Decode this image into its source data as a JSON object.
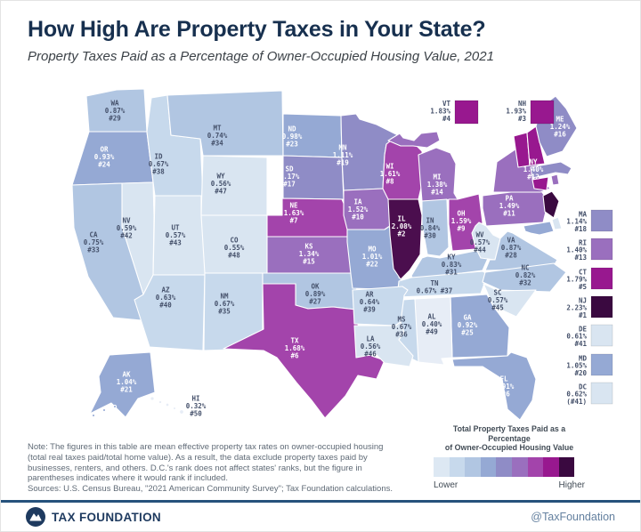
{
  "header": {
    "title": "How High Are Property Taxes in Your State?",
    "subtitle": "Property Taxes Paid as a Percentage of Owner-Occupied Housing Value, 2021"
  },
  "map": {
    "states": [
      {
        "code": "WA",
        "value": "0.87%",
        "rank": "#29",
        "fill": "#b1c6e2",
        "text": "#44506a"
      },
      {
        "code": "OR",
        "value": "0.93%",
        "rank": "#24",
        "fill": "#95a9d4",
        "text": "#ffffff"
      },
      {
        "code": "CA",
        "value": "0.75%",
        "rank": "#33",
        "fill": "#b1c6e2",
        "text": "#44506a"
      },
      {
        "code": "NV",
        "value": "0.59%",
        "rank": "#42",
        "fill": "#d9e5f1",
        "text": "#44506a"
      },
      {
        "code": "ID",
        "value": "0.67%",
        "rank": "#38",
        "fill": "#c7d9ec",
        "text": "#44506a"
      },
      {
        "code": "UT",
        "value": "0.57%",
        "rank": "#43",
        "fill": "#d9e5f1",
        "text": "#44506a"
      },
      {
        "code": "AZ",
        "value": "0.63%",
        "rank": "#40",
        "fill": "#c7d9ec",
        "text": "#44506a"
      },
      {
        "code": "MT",
        "value": "0.74%",
        "rank": "#34",
        "fill": "#b1c6e2",
        "text": "#44506a"
      },
      {
        "code": "WY",
        "value": "0.56%",
        "rank": "#47",
        "fill": "#d9e5f1",
        "text": "#44506a"
      },
      {
        "code": "CO",
        "value": "0.55%",
        "rank": "#48",
        "fill": "#d9e5f1",
        "text": "#44506a"
      },
      {
        "code": "NM",
        "value": "0.67%",
        "rank": "#35",
        "fill": "#c7d9ec",
        "text": "#44506a"
      },
      {
        "code": "ND",
        "value": "0.98%",
        "rank": "#23",
        "fill": "#95a9d4",
        "text": "#ffffff"
      },
      {
        "code": "SD",
        "value": "1.17%",
        "rank": "#17",
        "fill": "#8f8cc6",
        "text": "#ffffff"
      },
      {
        "code": "NE",
        "value": "1.63%",
        "rank": "#7",
        "fill": "#a344ab",
        "text": "#ffffff"
      },
      {
        "code": "KS",
        "value": "1.34%",
        "rank": "#15",
        "fill": "#9a6fbe",
        "text": "#ffffff"
      },
      {
        "code": "OK",
        "value": "0.89%",
        "rank": "#27",
        "fill": "#b1c6e2",
        "text": "#44506a"
      },
      {
        "code": "TX",
        "value": "1.68%",
        "rank": "#6",
        "fill": "#a344ab",
        "text": "#ffffff"
      },
      {
        "code": "MN",
        "value": "1.11%",
        "rank": "#19",
        "fill": "#8f8cc6",
        "text": "#ffffff"
      },
      {
        "code": "IA",
        "value": "1.52%",
        "rank": "#10",
        "fill": "#9a6fbe",
        "text": "#ffffff"
      },
      {
        "code": "MO",
        "value": "1.01%",
        "rank": "#22",
        "fill": "#95a9d4",
        "text": "#ffffff"
      },
      {
        "code": "AR",
        "value": "0.64%",
        "rank": "#39",
        "fill": "#c7d9ec",
        "text": "#44506a"
      },
      {
        "code": "LA",
        "value": "0.56%",
        "rank": "#46",
        "fill": "#d9e5f1",
        "text": "#44506a"
      },
      {
        "code": "WI",
        "value": "1.61%",
        "rank": "#8",
        "fill": "#a344ab",
        "text": "#ffffff"
      },
      {
        "code": "IL",
        "value": "2.08%",
        "rank": "#2",
        "fill": "#4b0e4e",
        "text": "#ffffff"
      },
      {
        "code": "MI",
        "value": "1.38%",
        "rank": "#14",
        "fill": "#9a6fbe",
        "text": "#ffffff"
      },
      {
        "code": "IN",
        "value": "0.84%",
        "rank": "#30",
        "fill": "#b1c6e2",
        "text": "#44506a"
      },
      {
        "code": "OH",
        "value": "1.59%",
        "rank": "#9",
        "fill": "#a344ab",
        "text": "#ffffff"
      },
      {
        "code": "KY",
        "value": "0.83%",
        "rank": "#31",
        "fill": "#b1c6e2",
        "text": "#44506a"
      },
      {
        "code": "TN",
        "value": "0.67%",
        "rank": "#37",
        "fill": "#c7d9ec",
        "text": "#44506a"
      },
      {
        "code": "WV",
        "value": "0.57%",
        "rank": "#44",
        "fill": "#d9e5f1",
        "text": "#44506a"
      },
      {
        "code": "VA",
        "value": "0.87%",
        "rank": "#28",
        "fill": "#b1c6e2",
        "text": "#44506a"
      },
      {
        "code": "NC",
        "value": "0.82%",
        "rank": "#32",
        "fill": "#b1c6e2",
        "text": "#44506a"
      },
      {
        "code": "SC",
        "value": "0.57%",
        "rank": "#45",
        "fill": "#d9e5f1",
        "text": "#44506a"
      },
      {
        "code": "GA",
        "value": "0.92%",
        "rank": "#25",
        "fill": "#95a9d4",
        "text": "#ffffff"
      },
      {
        "code": "AL",
        "value": "0.40%",
        "rank": "#49",
        "fill": "#e7edf6",
        "text": "#44506a"
      },
      {
        "code": "MS",
        "value": "0.67%",
        "rank": "#36",
        "fill": "#c7d9ec",
        "text": "#44506a"
      },
      {
        "code": "FL",
        "value": "0.91%",
        "rank": "#26",
        "fill": "#95a9d4",
        "text": "#ffffff"
      },
      {
        "code": "PA",
        "value": "1.49%",
        "rank": "#11",
        "fill": "#9a6fbe",
        "text": "#ffffff"
      },
      {
        "code": "NY",
        "value": "1.40%",
        "rank": "#12",
        "fill": "#9a6fbe",
        "text": "#ffffff"
      },
      {
        "code": "ME",
        "value": "1.24%",
        "rank": "#16",
        "fill": "#8f8cc6",
        "text": "#ffffff"
      },
      {
        "code": "AK",
        "value": "1.04%",
        "rank": "#21",
        "fill": "#95a9d4",
        "text": "#ffffff"
      },
      {
        "code": "HI",
        "value": "0.32%",
        "rank": "#50",
        "fill": "#e7edf6",
        "text": "#44506a"
      },
      {
        "code": "VT",
        "value": "1.83%",
        "rank": "#4",
        "fill": "#98188f",
        "text": "#44506a"
      },
      {
        "code": "NH",
        "value": "1.93%",
        "rank": "#3",
        "fill": "#98188f",
        "text": "#44506a"
      },
      {
        "code": "MA",
        "value": "1.14%",
        "rank": "#18",
        "fill": "#8f8cc6",
        "text": "#44506a"
      },
      {
        "code": "RI",
        "value": "1.40%",
        "rank": "#13",
        "fill": "#9a6fbe",
        "text": "#44506a"
      },
      {
        "code": "CT",
        "value": "1.79%",
        "rank": "#5",
        "fill": "#98188f",
        "text": "#44506a"
      },
      {
        "code": "NJ",
        "value": "2.23%",
        "rank": "#1",
        "fill": "#3a0940",
        "text": "#44506a"
      },
      {
        "code": "DE",
        "value": "0.61%",
        "rank": "#41",
        "fill": "#d9e5f1",
        "text": "#44506a"
      },
      {
        "code": "MD",
        "value": "1.05%",
        "rank": "#20",
        "fill": "#95a9d4",
        "text": "#44506a"
      },
      {
        "code": "DC",
        "value": "0.62%",
        "rank": "(#41)",
        "fill": "#d9e5f1",
        "text": "#44506a"
      }
    ],
    "callouts": [
      "VT",
      "NH"
    ],
    "side_list": [
      "MA",
      "RI",
      "CT",
      "NJ",
      "DE",
      "MD",
      "DC"
    ]
  },
  "legend": {
    "title1": "Total Property Taxes Paid as a Percentage",
    "title2": "of Owner-Occupied Housing Value",
    "lower": "Lower",
    "higher": "Higher",
    "scale": [
      "#dde8f3",
      "#c7d9ec",
      "#b1c6e2",
      "#95a9d4",
      "#8f8cc6",
      "#9a6fbe",
      "#a344ab",
      "#98188f",
      "#3a0940"
    ]
  },
  "notes": {
    "lines": [
      "Note: The figures in this table are mean effective property tax rates on owner-occupied housing",
      "(total real taxes paid/total home value). As a result, the data exclude property taxes paid by",
      "businesses, renters, and others. D.C.'s rank does not affect states' ranks, but the figure in",
      "parentheses indicates where it would rank if included.",
      "Sources: U.S. Census Bureau, \"2021 American Community Survey\"; Tax Foundation calculations."
    ]
  },
  "footer": {
    "brand": "TAX FOUNDATION",
    "handle": "@TaxFoundation",
    "accent": "#1e3a5f"
  }
}
